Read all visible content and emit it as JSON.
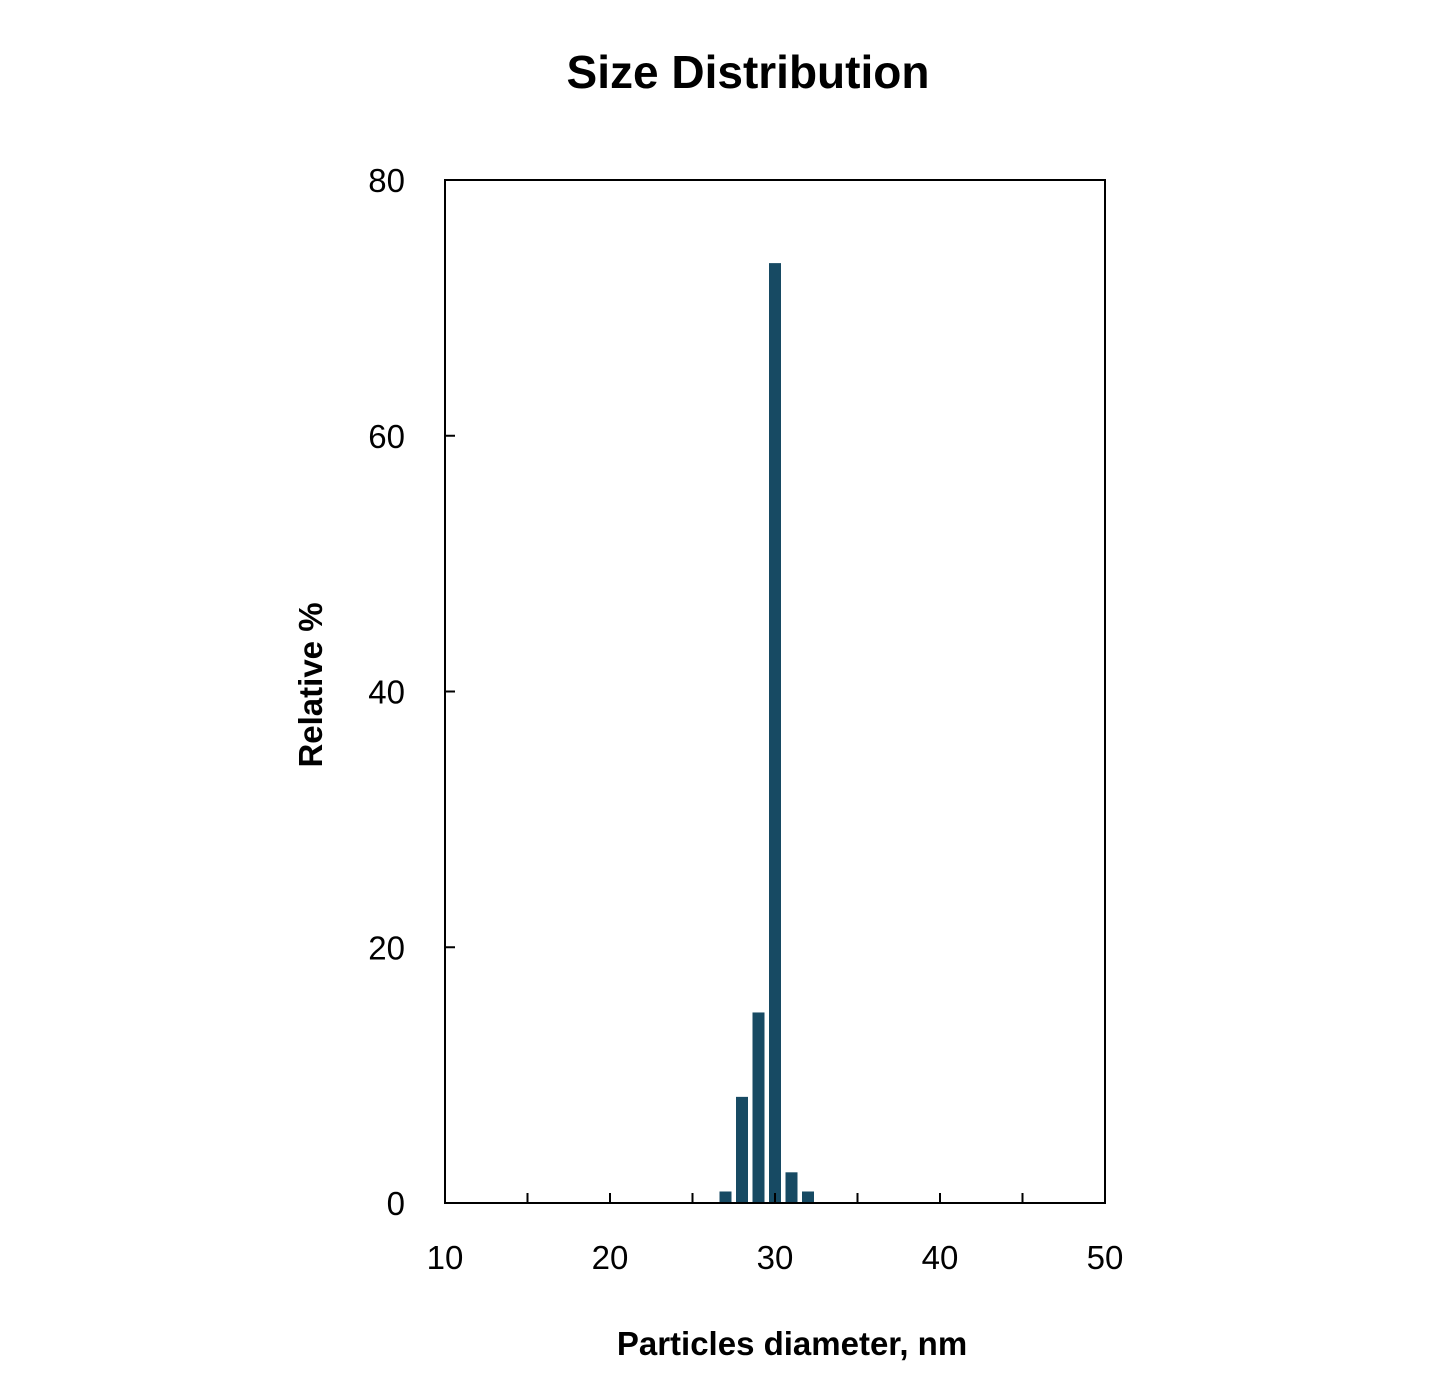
{
  "chart_data": {
    "type": "bar",
    "title": "Size Distribution",
    "xlabel": "Particles diameter, nm",
    "ylabel": "Relative %",
    "xlim": [
      10,
      50
    ],
    "ylim": [
      0,
      80
    ],
    "xticks": [
      10,
      20,
      30,
      40,
      50
    ],
    "yticks": [
      0,
      20,
      40,
      60,
      80
    ],
    "grid": false,
    "x": [
      27,
      28,
      29,
      30,
      31,
      32
    ],
    "values": [
      0.9,
      8.3,
      14.9,
      73.5,
      2.4,
      0.9
    ],
    "bar_color": "#174a63"
  }
}
